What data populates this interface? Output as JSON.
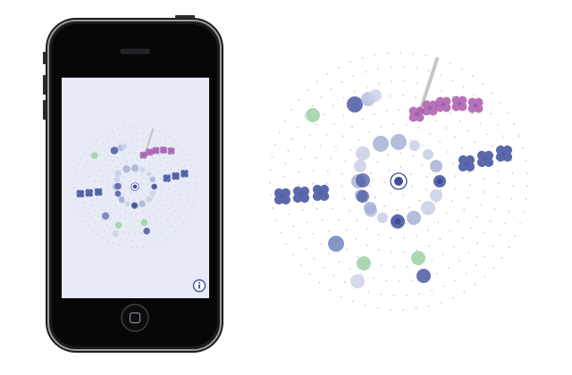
{
  "colors": {
    "blue": "#3e4f9e",
    "light_blue": "#a7b1d6",
    "pale_blue": "#c9cfe7",
    "magenta": "#a850a8",
    "green": "#9bd1a4",
    "needle": "#bfbfc6",
    "screen": "#e7ebf6"
  },
  "icons": {
    "info": "info-icon",
    "home": "home-button-icon"
  }
}
